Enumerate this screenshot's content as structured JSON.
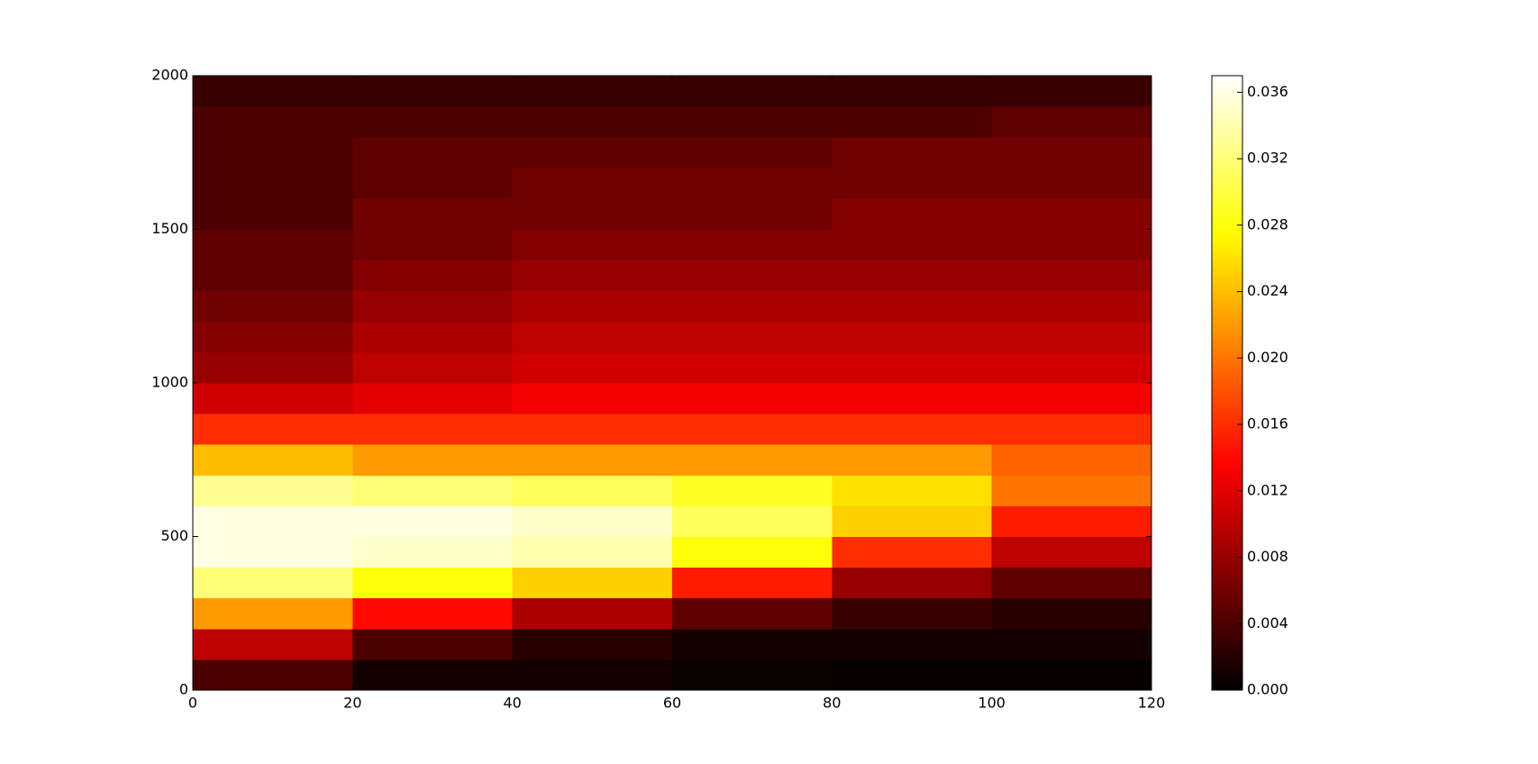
{
  "chart_data": {
    "type": "heatmap",
    "colormap": "hot",
    "x_edges": [
      0,
      20,
      40,
      60,
      80,
      100,
      120
    ],
    "y_edges": [
      0,
      100,
      200,
      300,
      400,
      500,
      600,
      700,
      800,
      900,
      1000,
      1100,
      1200,
      1300,
      1400,
      1500,
      1600,
      1700,
      1800,
      1900,
      2000
    ],
    "z": [
      [
        0.004,
        0.001,
        0.001,
        0.0005,
        0.0003,
        0.0003
      ],
      [
        0.01,
        0.004,
        0.002,
        0.001,
        0.001,
        0.001
      ],
      [
        0.022,
        0.014,
        0.009,
        0.005,
        0.003,
        0.002
      ],
      [
        0.032,
        0.028,
        0.025,
        0.015,
        0.008,
        0.005
      ],
      [
        0.036,
        0.035,
        0.034,
        0.028,
        0.016,
        0.01
      ],
      [
        0.036,
        0.036,
        0.035,
        0.031,
        0.025,
        0.015
      ],
      [
        0.033,
        0.032,
        0.031,
        0.029,
        0.026,
        0.02
      ],
      [
        0.024,
        0.022,
        0.022,
        0.022,
        0.022,
        0.019
      ],
      [
        0.016,
        0.016,
        0.016,
        0.016,
        0.016,
        0.016
      ],
      [
        0.011,
        0.012,
        0.013,
        0.013,
        0.013,
        0.013
      ],
      [
        0.008,
        0.01,
        0.011,
        0.011,
        0.011,
        0.011
      ],
      [
        0.007,
        0.009,
        0.01,
        0.01,
        0.01,
        0.01
      ],
      [
        0.006,
        0.008,
        0.009,
        0.009,
        0.009,
        0.009
      ],
      [
        0.005,
        0.007,
        0.008,
        0.008,
        0.008,
        0.008
      ],
      [
        0.005,
        0.006,
        0.007,
        0.007,
        0.007,
        0.007
      ],
      [
        0.004,
        0.006,
        0.006,
        0.006,
        0.007,
        0.007
      ],
      [
        0.004,
        0.005,
        0.006,
        0.006,
        0.006,
        0.006
      ],
      [
        0.004,
        0.005,
        0.005,
        0.005,
        0.006,
        0.006
      ],
      [
        0.004,
        0.004,
        0.004,
        0.004,
        0.004,
        0.005
      ],
      [
        0.003,
        0.003,
        0.003,
        0.003,
        0.003,
        0.003
      ]
    ],
    "xlim": [
      0,
      120
    ],
    "xticks": [
      0,
      20,
      40,
      60,
      80,
      100,
      120
    ],
    "ylim": [
      0,
      2000
    ],
    "yticks": [
      0,
      500,
      1000,
      1500,
      2000
    ],
    "zlim": [
      0,
      0.037
    ],
    "colorbar_ticks": [
      {
        "value": 0,
        "label": "0.000"
      },
      {
        "value": 0.004,
        "label": "0.004"
      },
      {
        "value": 0.008,
        "label": "0.008"
      },
      {
        "value": 0.012,
        "label": "0.012"
      },
      {
        "value": 0.016,
        "label": "0.016"
      },
      {
        "value": 0.02,
        "label": "0.020"
      },
      {
        "value": 0.024,
        "label": "0.024"
      },
      {
        "value": 0.028,
        "label": "0.028"
      },
      {
        "value": 0.032,
        "label": "0.032"
      },
      {
        "value": 0.036,
        "label": "0.036"
      }
    ]
  }
}
